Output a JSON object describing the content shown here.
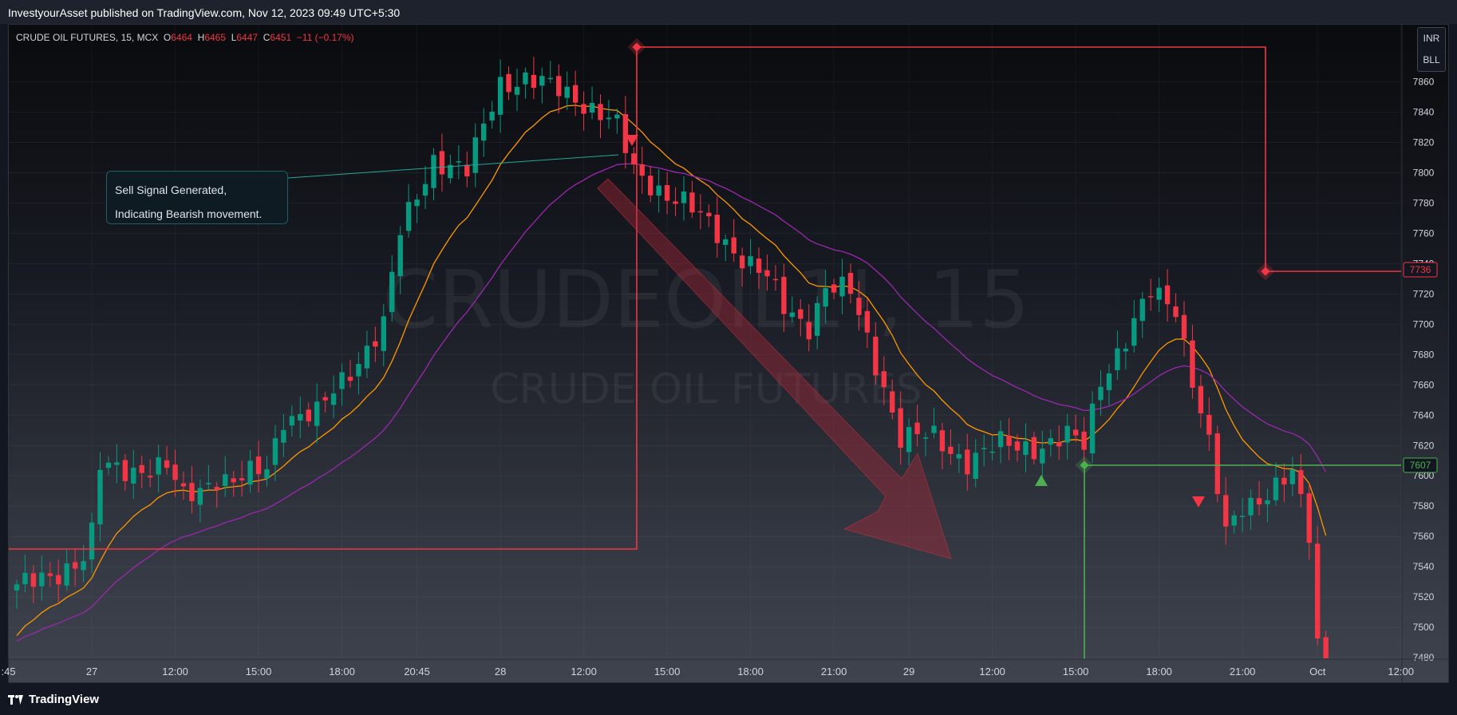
{
  "header": {
    "published": "InvestyourAsset published on TradingView.com, Nov 12, 2023 09:49 UTC+5:30"
  },
  "legend": {
    "symbol": "CRUDE OIL FUTURES, 15, MCX",
    "o_label": "O",
    "o": "6464",
    "h_label": "H",
    "h": "6465",
    "l_label": "L",
    "l": "6447",
    "c_label": "C",
    "c": "6451",
    "change": "−11 (−0.17%)"
  },
  "currency": {
    "top": "INR",
    "bottom": "BLL"
  },
  "watermark": {
    "main": "CRUDEOIL1!, 15",
    "sub": "CRUDE OIL FUTURES"
  },
  "callout": {
    "line1": "Sell Signal Generated,",
    "line2": "Indicating Bearish movement."
  },
  "footer": {
    "brand": "TradingView"
  },
  "colors": {
    "up": "#089981",
    "down": "#f23645",
    "ema_fast": "#ff9800",
    "ema_slow": "#9c27b0",
    "target": "#4caf50"
  },
  "chart_data": {
    "type": "candlestick",
    "ylim": [
      7480,
      7880
    ],
    "y_ticks": [
      7480,
      7500,
      7520,
      7540,
      7560,
      7580,
      7600,
      7620,
      7640,
      7660,
      7680,
      7700,
      7720,
      7740,
      7760,
      7780,
      7800,
      7820,
      7840,
      7860
    ],
    "x_tick_labels": [
      {
        "i": -1,
        "label": ":45"
      },
      {
        "i": 9,
        "label": "27"
      },
      {
        "i": 19,
        "label": "12:00"
      },
      {
        "i": 29,
        "label": "15:00"
      },
      {
        "i": 39,
        "label": "18:00"
      },
      {
        "i": 48,
        "label": "20:45"
      },
      {
        "i": 58,
        "label": "28"
      },
      {
        "i": 68,
        "label": "12:00"
      },
      {
        "i": 78,
        "label": "15:00"
      },
      {
        "i": 88,
        "label": "18:00"
      },
      {
        "i": 98,
        "label": "21:00"
      },
      {
        "i": 107,
        "label": "29"
      },
      {
        "i": 117,
        "label": "12:00"
      },
      {
        "i": 127,
        "label": "15:00"
      },
      {
        "i": 137,
        "label": "18:00"
      },
      {
        "i": 147,
        "label": "21:00"
      },
      {
        "i": 156,
        "label": "Oct"
      },
      {
        "i": 166,
        "label": "12:00"
      }
    ],
    "price_labels": [
      {
        "value": 7736,
        "label": "7736",
        "color": "#f23645"
      },
      {
        "value": 7607,
        "label": "7607",
        "color": "#4caf50"
      }
    ],
    "anchors": [
      0,
      7525,
      8,
      7545,
      9,
      7560,
      10,
      7605,
      18,
      7605,
      20,
      7585,
      24,
      7600,
      26,
      7595,
      30,
      7605,
      32,
      7640,
      36,
      7640,
      40,
      7670,
      44,
      7700,
      46,
      7760,
      50,
      7810,
      54,
      7800,
      58,
      7860,
      61,
      7862,
      67,
      7850,
      70,
      7840,
      72,
      7830,
      74,
      7800,
      77,
      7790,
      80,
      7780,
      84,
      7760,
      87,
      7745,
      90,
      7730,
      92,
      7710,
      95,
      7700,
      97,
      7725,
      100,
      7720,
      104,
      7660,
      106,
      7625,
      110,
      7625,
      114,
      7610,
      118,
      7620,
      123,
      7620,
      126,
      7625,
      128,
      7620,
      130,
      7665,
      133,
      7690,
      136,
      7720,
      139,
      7712,
      141,
      7665,
      143,
      7620,
      145,
      7560,
      147,
      7580,
      150,
      7590,
      153,
      7600,
      155,
      7560,
      156,
      7490,
      157,
      7460
    ]
  }
}
